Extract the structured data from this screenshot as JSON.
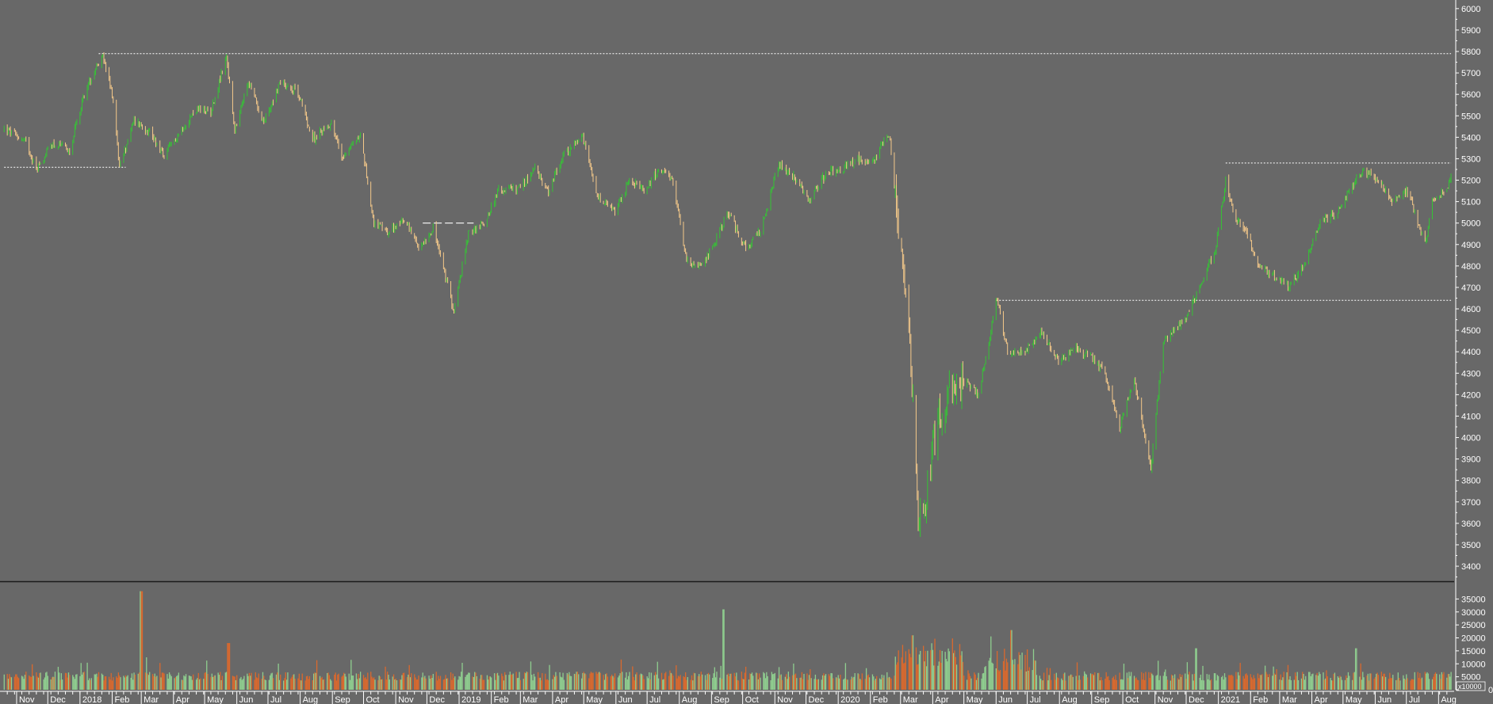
{
  "colors": {
    "background": "#686868",
    "up": "#35c435",
    "down": "#f5c98a",
    "volume_up": "#8fce8f",
    "volume_down": "#d9692e",
    "separator": "#1a1a1a",
    "reference_line": "#ffffff"
  },
  "chart_data": [
    {
      "type": "candlestick",
      "title": "",
      "ylim": [
        3330,
        6040
      ],
      "y_ticks": [
        3400,
        3500,
        3600,
        3700,
        3800,
        3900,
        4000,
        4100,
        4200,
        4300,
        4400,
        4500,
        4600,
        4700,
        4800,
        4900,
        5000,
        5100,
        5200,
        5300,
        5400,
        5500,
        5600,
        5700,
        5800,
        5900,
        6000
      ],
      "x_labels": [
        "Nov",
        "Dec",
        "2018",
        "Feb",
        "Mar",
        "Apr",
        "May",
        "Jun",
        "Jul",
        "Aug",
        "Sep",
        "Oct",
        "Nov",
        "Dec",
        "2019",
        "Feb",
        "Mar",
        "Apr",
        "May",
        "Jun",
        "Jul",
        "Aug",
        "Sep",
        "Oct",
        "Nov",
        "Dec",
        "2020",
        "Feb",
        "Mar",
        "Apr",
        "May",
        "Jun",
        "Jul",
        "Aug",
        "Sep",
        "Oct",
        "Nov",
        "Dec",
        "2021",
        "Feb",
        "Mar",
        "Apr",
        "May",
        "Jun",
        "Jul",
        "Aug"
      ],
      "anchors": [
        [
          "2017-10-20",
          5440
        ],
        [
          "2017-11-10",
          5380
        ],
        [
          "2017-11-20",
          5250
        ],
        [
          "2017-12-05",
          5370
        ],
        [
          "2017-12-22",
          5340
        ],
        [
          "2018-01-05",
          5600
        ],
        [
          "2018-01-22",
          5790
        ],
        [
          "2018-02-02",
          5580
        ],
        [
          "2018-02-08",
          5260
        ],
        [
          "2018-02-22",
          5480
        ],
        [
          "2018-03-09",
          5430
        ],
        [
          "2018-03-23",
          5310
        ],
        [
          "2018-04-06",
          5420
        ],
        [
          "2018-04-23",
          5530
        ],
        [
          "2018-05-07",
          5520
        ],
        [
          "2018-05-22",
          5780
        ],
        [
          "2018-05-30",
          5420
        ],
        [
          "2018-06-12",
          5660
        ],
        [
          "2018-06-27",
          5470
        ],
        [
          "2018-07-13",
          5660
        ],
        [
          "2018-07-30",
          5610
        ],
        [
          "2018-08-13",
          5390
        ],
        [
          "2018-08-31",
          5470
        ],
        [
          "2018-09-10",
          5310
        ],
        [
          "2018-09-28",
          5410
        ],
        [
          "2018-10-11",
          5000
        ],
        [
          "2018-10-25",
          4950
        ],
        [
          "2018-11-09",
          5020
        ],
        [
          "2018-11-23",
          4880
        ],
        [
          "2018-12-07",
          4980
        ],
        [
          "2018-12-27",
          4590
        ],
        [
          "2019-01-10",
          4950
        ],
        [
          "2019-01-25",
          5000
        ],
        [
          "2019-02-08",
          5150
        ],
        [
          "2019-02-28",
          5160
        ],
        [
          "2019-03-15",
          5250
        ],
        [
          "2019-03-28",
          5150
        ],
        [
          "2019-04-12",
          5320
        ],
        [
          "2019-04-30",
          5400
        ],
        [
          "2019-05-14",
          5120
        ],
        [
          "2019-05-31",
          5050
        ],
        [
          "2019-06-14",
          5200
        ],
        [
          "2019-06-28",
          5150
        ],
        [
          "2019-07-12",
          5250
        ],
        [
          "2019-07-26",
          5190
        ],
        [
          "2019-08-08",
          4830
        ],
        [
          "2019-08-22",
          4790
        ],
        [
          "2019-09-05",
          4920
        ],
        [
          "2019-09-17",
          5050
        ],
        [
          "2019-10-04",
          4880
        ],
        [
          "2019-10-18",
          4960
        ],
        [
          "2019-11-05",
          5280
        ],
        [
          "2019-11-22",
          5200
        ],
        [
          "2019-12-04",
          5100
        ],
        [
          "2019-12-20",
          5230
        ],
        [
          "2020-01-08",
          5260
        ],
        [
          "2020-01-20",
          5300
        ],
        [
          "2020-02-03",
          5280
        ],
        [
          "2020-02-19",
          5420
        ],
        [
          "2020-02-28",
          4990
        ],
        [
          "2020-03-06",
          4700
        ],
        [
          "2020-03-12",
          4250
        ],
        [
          "2020-03-18",
          3650
        ],
        [
          "2020-03-23",
          3600
        ],
        [
          "2020-04-01",
          4000
        ],
        [
          "2020-04-16",
          4200
        ],
        [
          "2020-05-04",
          4250
        ],
        [
          "2020-05-15",
          4200
        ],
        [
          "2020-06-02",
          4650
        ],
        [
          "2020-06-12",
          4400
        ],
        [
          "2020-06-30",
          4400
        ],
        [
          "2020-07-14",
          4500
        ],
        [
          "2020-07-31",
          4350
        ],
        [
          "2020-08-14",
          4420
        ],
        [
          "2020-08-31",
          4380
        ],
        [
          "2020-09-14",
          4300
        ],
        [
          "2020-09-28",
          4050
        ],
        [
          "2020-10-12",
          4280
        ],
        [
          "2020-10-28",
          3850
        ],
        [
          "2020-11-09",
          4450
        ],
        [
          "2020-11-30",
          4550
        ],
        [
          "2020-12-14",
          4700
        ],
        [
          "2020-12-30",
          4900
        ],
        [
          "2021-01-08",
          5200
        ],
        [
          "2021-01-15",
          5050
        ],
        [
          "2021-01-29",
          4950
        ],
        [
          "2021-02-09",
          4800
        ],
        [
          "2021-02-25",
          4750
        ],
        [
          "2021-03-10",
          4700
        ],
        [
          "2021-03-24",
          4800
        ],
        [
          "2021-04-08",
          5000
        ],
        [
          "2021-04-26",
          5050
        ],
        [
          "2021-05-07",
          5150
        ],
        [
          "2021-05-20",
          5250
        ],
        [
          "2021-06-04",
          5200
        ],
        [
          "2021-06-18",
          5100
        ],
        [
          "2021-07-02",
          5150
        ],
        [
          "2021-07-19",
          4900
        ],
        [
          "2021-07-26",
          5100
        ],
        [
          "2021-08-09",
          5170
        ],
        [
          "2021-08-13",
          5200
        ]
      ],
      "reference_lines": [
        {
          "y": 5790,
          "from": "2018-01-19",
          "to": "2021-08-13"
        },
        {
          "y": 5260,
          "from": "2017-10-20",
          "to": "2018-02-14"
        },
        {
          "y": 5000,
          "from": "2018-11-27",
          "to": "2019-01-15"
        },
        {
          "y": 5280,
          "from": "2021-01-08",
          "to": "2021-08-13"
        },
        {
          "y": 4640,
          "from": "2020-06-01",
          "to": "2021-08-13"
        }
      ]
    },
    {
      "type": "bar",
      "name": "volume",
      "unit_label": "x10000",
      "ylim": [
        0,
        40000
      ],
      "y_ticks": [
        0,
        5000,
        10000,
        15000,
        20000,
        25000,
        30000,
        35000
      ],
      "spikes": [
        [
          "2018-03-01",
          38000
        ],
        [
          "2018-05-24",
          18000
        ],
        [
          "2019-09-13",
          31000
        ],
        [
          "2020-03-13",
          21000
        ],
        [
          "2020-06-15",
          23000
        ],
        [
          "2020-12-11",
          16000
        ],
        [
          "2021-05-14",
          16000
        ]
      ]
    }
  ]
}
